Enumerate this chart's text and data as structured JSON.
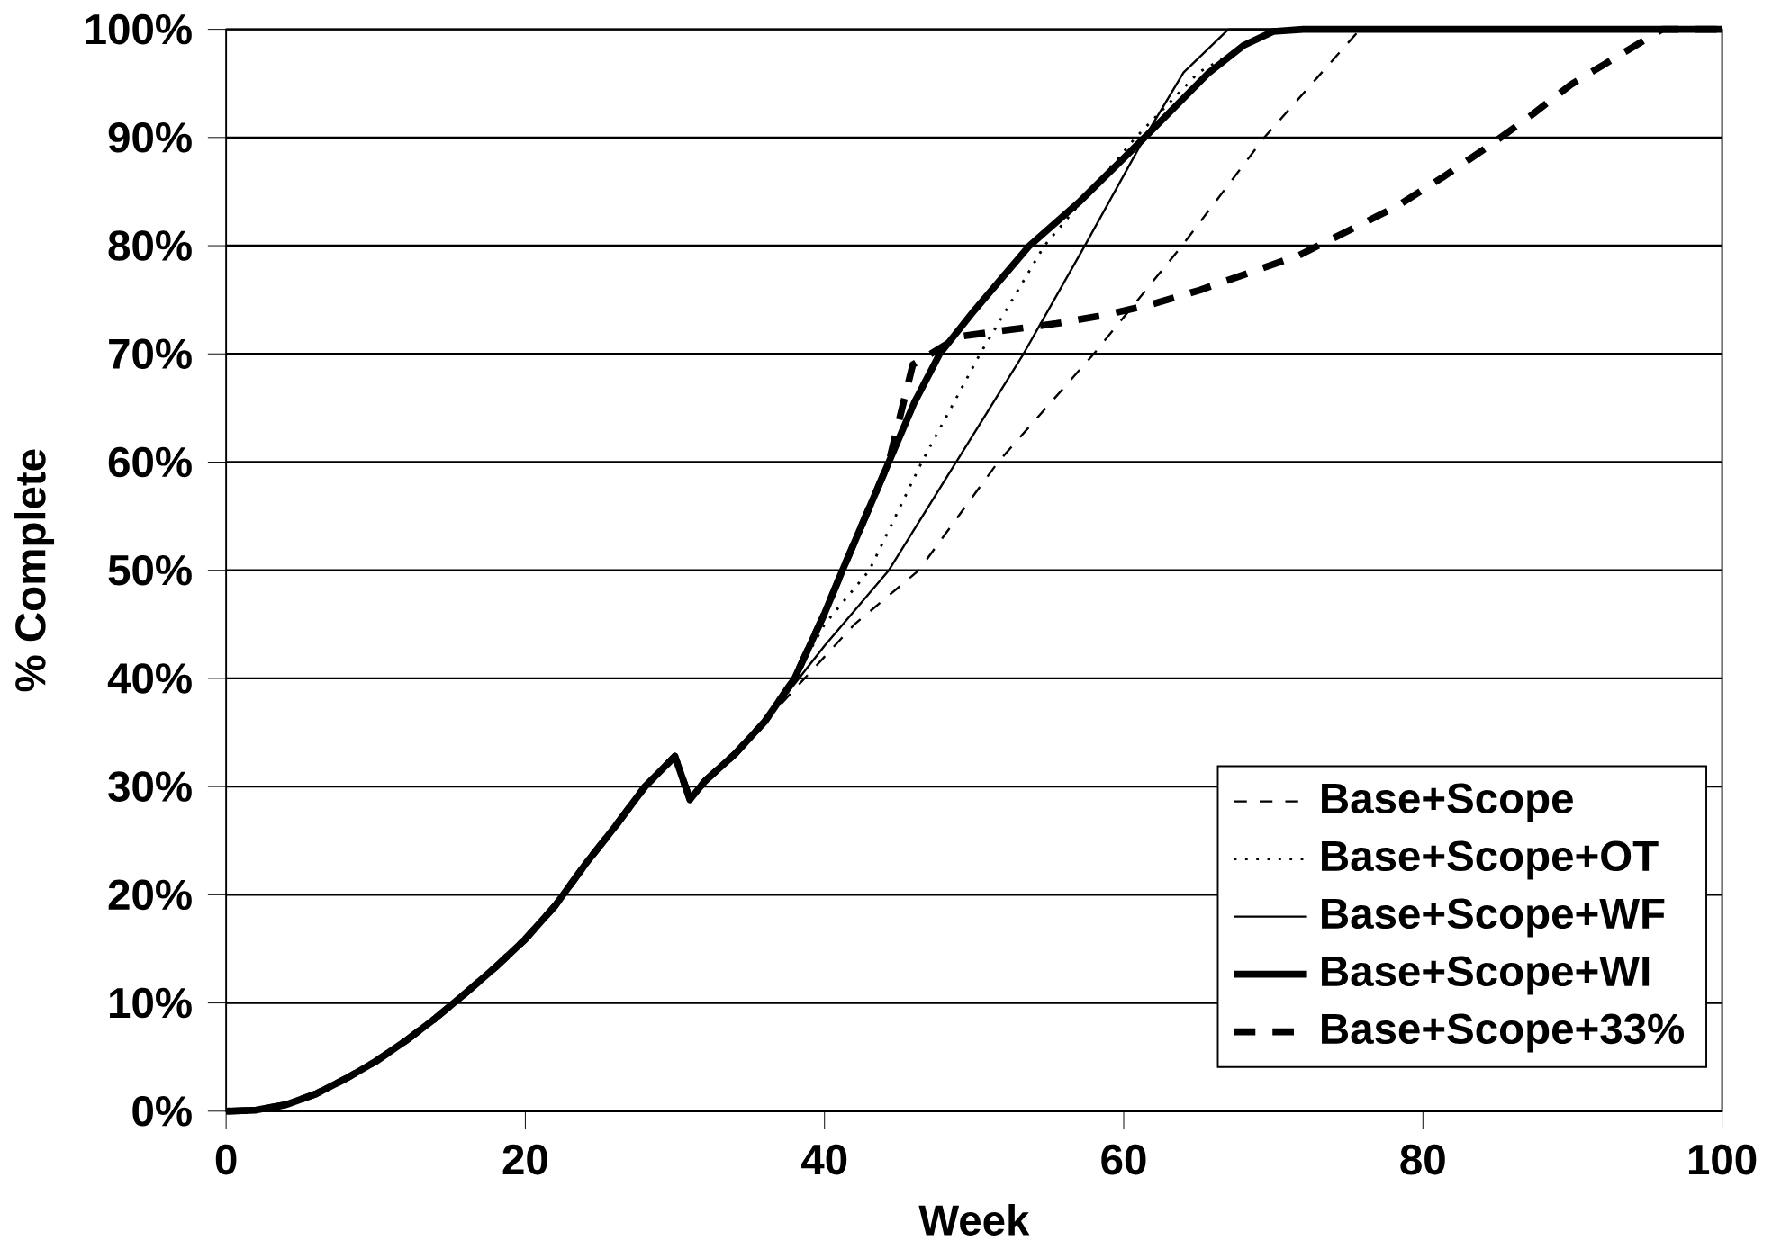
{
  "chart_data": {
    "type": "line",
    "xlabel": "Week",
    "ylabel": "% Complete",
    "xlim": [
      0,
      100
    ],
    "ylim": [
      0,
      100
    ],
    "xticks": [
      0,
      20,
      40,
      60,
      80,
      100
    ],
    "yticks": [
      {
        "value": 0,
        "label": "0%"
      },
      {
        "value": 10,
        "label": "10%"
      },
      {
        "value": 20,
        "label": "20%"
      },
      {
        "value": 30,
        "label": "30%"
      },
      {
        "value": 40,
        "label": "40%"
      },
      {
        "value": 50,
        "label": "50%"
      },
      {
        "value": 60,
        "label": "60%"
      },
      {
        "value": 70,
        "label": "70%"
      },
      {
        "value": 80,
        "label": "80%"
      },
      {
        "value": 90,
        "label": "90%"
      },
      {
        "value": 100,
        "label": "100%"
      }
    ],
    "grid": "y",
    "legend": "bottom right",
    "marker": "none",
    "series": [
      {
        "name": "Base+Scope",
        "color": "#000000",
        "line_style": "dashed",
        "x": [
          0,
          2,
          4,
          6,
          8,
          10,
          12,
          14,
          16,
          18,
          20,
          22,
          24,
          26,
          28,
          30,
          31,
          32,
          34,
          36,
          38,
          40,
          42,
          46.3,
          51.6,
          58,
          63.9,
          69.4,
          75.8,
          100
        ],
        "values": [
          0,
          0.1,
          0.6,
          1.6,
          3,
          4.6,
          6.5,
          8.6,
          10.9,
          13.3,
          15.9,
          19,
          22.8,
          26.3,
          30,
          32.8,
          28.8,
          30.5,
          33,
          36,
          39,
          42,
          45,
          50,
          60,
          70,
          80,
          90,
          100,
          100
        ]
      },
      {
        "name": "Base+Scope+OT",
        "color": "#000000",
        "line_style": "dotted",
        "x": [
          0,
          2,
          4,
          6,
          8,
          10,
          12,
          14,
          16,
          18,
          20,
          22,
          24,
          26,
          28,
          30,
          31,
          32,
          34,
          36,
          38,
          40,
          43,
          46.5,
          50.4,
          54.7,
          60.8,
          65,
          70,
          100
        ],
        "values": [
          0,
          0.1,
          0.6,
          1.6,
          3,
          4.6,
          6.5,
          8.6,
          10.9,
          13.3,
          15.9,
          19,
          22.8,
          26.3,
          30,
          32.8,
          28.8,
          30.5,
          33,
          36,
          40,
          45,
          50,
          60,
          70,
          80,
          90,
          96,
          100,
          100
        ]
      },
      {
        "name": "Base+Scope+WF",
        "color": "#000000",
        "line_style": "solid",
        "x": [
          0,
          2,
          4,
          6,
          8,
          10,
          12,
          14,
          16,
          18,
          20,
          22,
          24,
          26,
          28,
          30,
          31,
          32,
          34,
          36,
          38,
          40,
          44.3,
          48.8,
          53.3,
          57.4,
          61.4,
          64,
          67,
          100
        ],
        "values": [
          0,
          0.1,
          0.6,
          1.6,
          3,
          4.6,
          6.5,
          8.6,
          10.9,
          13.3,
          15.9,
          19,
          22.8,
          26.3,
          30,
          32.8,
          28.8,
          30.5,
          33,
          36,
          39.5,
          43,
          50,
          60,
          70,
          80,
          90,
          96,
          100,
          100
        ]
      },
      {
        "name": "Base+Scope+WI",
        "color": "#000000",
        "line_style": "solid",
        "x": [
          0,
          2,
          4,
          6,
          8,
          10,
          12,
          14,
          16,
          18,
          20,
          22,
          24,
          26,
          28,
          30,
          31,
          32,
          34,
          36,
          38,
          40,
          41.2,
          44.3,
          46,
          47.7,
          50,
          53.7,
          57,
          61.4,
          65.7,
          68,
          70,
          72,
          100
        ],
        "values": [
          0,
          0.1,
          0.6,
          1.6,
          3,
          4.6,
          6.5,
          8.6,
          10.9,
          13.3,
          15.9,
          19,
          22.8,
          26.3,
          30,
          32.8,
          28.8,
          30.5,
          33,
          36,
          40,
          46,
          50,
          60,
          65.5,
          70,
          74,
          80,
          84,
          90,
          96,
          98.5,
          99.8,
          100,
          100
        ]
      },
      {
        "name": "Base+Scope+33%",
        "color": "#000000",
        "line_style": "dashed",
        "x": [
          0,
          2,
          4,
          6,
          8,
          10,
          12,
          14,
          16,
          18,
          20,
          22,
          24,
          26,
          28,
          30,
          31,
          32,
          34,
          36,
          38,
          40,
          41.2,
          44.3,
          45.9,
          49,
          52.2,
          55.5,
          58.8,
          61.9,
          65.1,
          68.4,
          71.7,
          74.9,
          78.2,
          81.3,
          84.3,
          87.2,
          89.9,
          96,
          100
        ],
        "values": [
          0,
          0.1,
          0.6,
          1.6,
          3,
          4.6,
          6.5,
          8.6,
          10.9,
          13.3,
          15.9,
          19,
          22.8,
          26.3,
          30,
          32.8,
          28.8,
          30.5,
          33,
          36,
          40,
          46,
          50,
          60,
          69,
          71.6,
          72.2,
          72.8,
          73.6,
          74.6,
          75.9,
          77.5,
          79.1,
          81.3,
          83.6,
          86.3,
          89.1,
          92,
          94.9,
          100,
          100
        ]
      }
    ]
  }
}
